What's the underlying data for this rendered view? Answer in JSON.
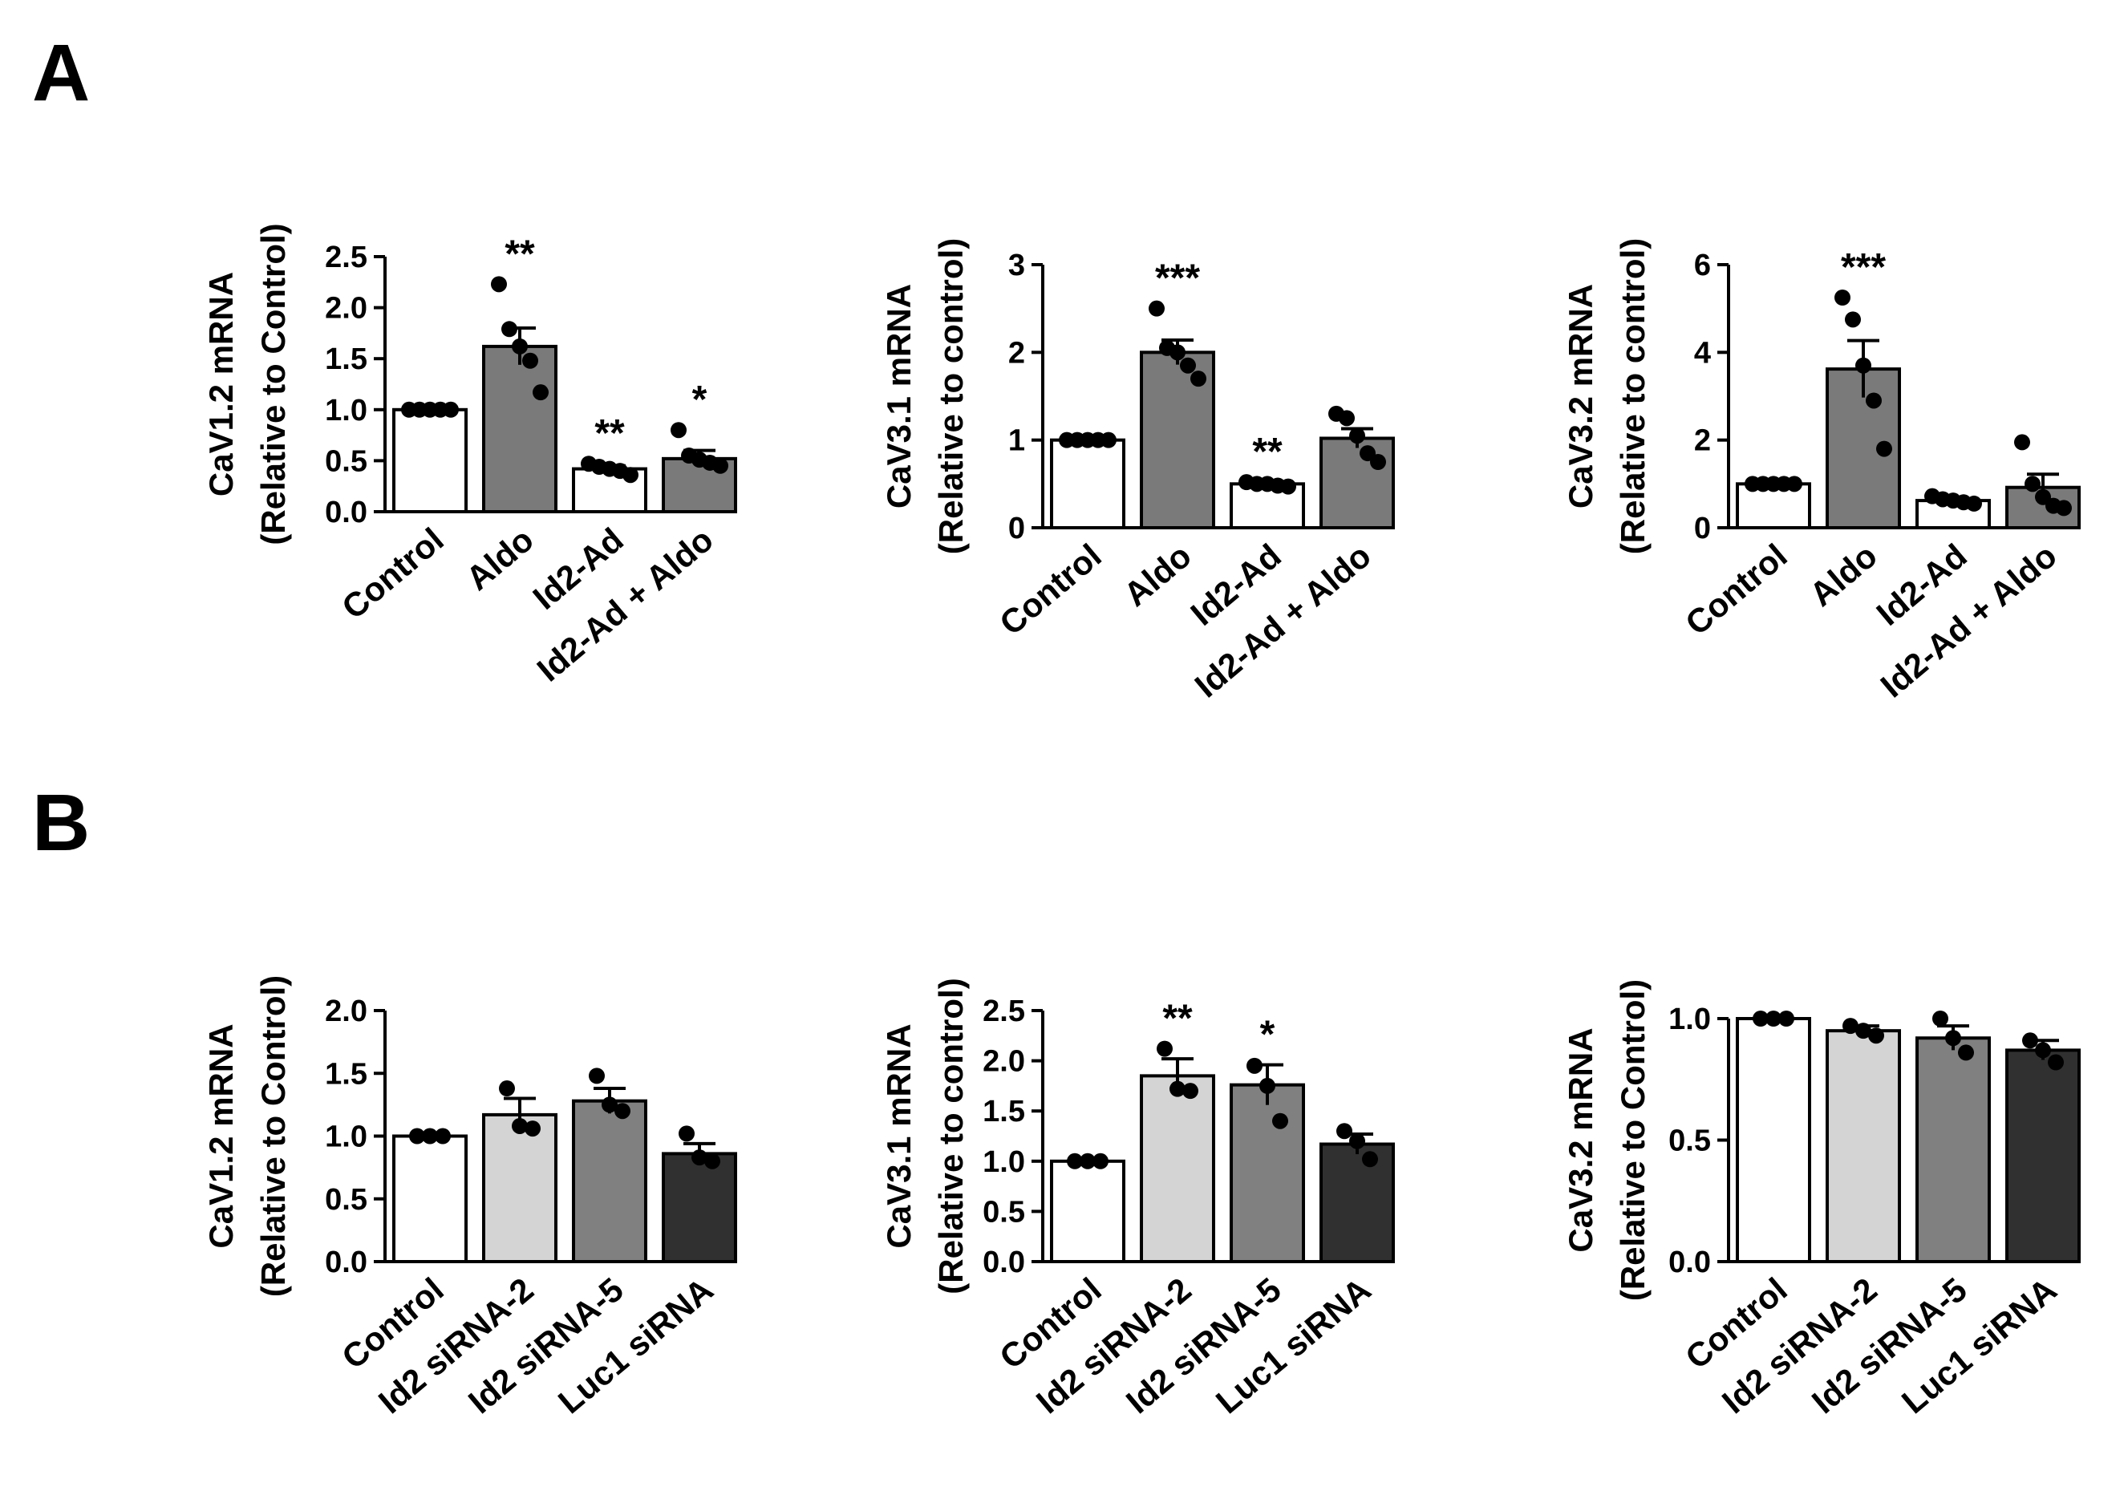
{
  "panels": {
    "A": "A",
    "B": "B"
  },
  "colors": {
    "Control": "#ffffff",
    "Aldo": "#7a7a7a",
    "Id2-Ad": "#ffffff",
    "Id2-Ad + Aldo": "#7a7a7a",
    "Id2 siRNA-2": "#d4d4d4",
    "Id2 siRNA-5": "#808080",
    "Luc1 siRNA": "#303030"
  },
  "chart_data": [
    {
      "id": "A1",
      "panel": "A",
      "type": "bar",
      "ylabel": [
        "CaV1.2 mRNA",
        "(Relative to Control)"
      ],
      "ylim": [
        0,
        2.5
      ],
      "yticks": [
        "0.0",
        "0.5",
        "1.0",
        "1.5",
        "2.0",
        "2.5"
      ],
      "categories": [
        "Control",
        "Aldo",
        "Id2-Ad",
        "Id2-Ad + Aldo"
      ],
      "values": [
        1.0,
        1.62,
        0.42,
        0.52
      ],
      "errors": [
        0.0,
        0.18,
        0.03,
        0.08
      ],
      "points": [
        [
          1.0,
          1.0,
          1.0,
          1.0,
          1.0
        ],
        [
          2.23,
          1.79,
          1.62,
          1.48,
          1.17
        ],
        [
          0.47,
          0.44,
          0.42,
          0.4,
          0.36
        ],
        [
          0.8,
          0.55,
          0.51,
          0.48,
          0.45
        ]
      ],
      "significance": [
        "",
        "**",
        "**",
        "*"
      ]
    },
    {
      "id": "A2",
      "panel": "A",
      "type": "bar",
      "ylabel": [
        "CaV3.1 mRNA",
        "(Relative to control)"
      ],
      "ylim": [
        0,
        3
      ],
      "yticks": [
        "0",
        "1",
        "2",
        "3"
      ],
      "categories": [
        "Control",
        "Aldo",
        "Id2-Ad",
        "Id2-Ad + Aldo"
      ],
      "values": [
        1.0,
        2.0,
        0.5,
        1.02
      ],
      "errors": [
        0.0,
        0.14,
        0.02,
        0.11
      ],
      "points": [
        [
          1.0,
          1.0,
          1.0,
          1.0,
          1.0
        ],
        [
          2.5,
          2.05,
          2.0,
          1.85,
          1.7
        ],
        [
          0.52,
          0.5,
          0.5,
          0.48,
          0.47
        ],
        [
          1.3,
          1.25,
          1.05,
          0.85,
          0.75
        ]
      ],
      "significance": [
        "",
        "***",
        "**",
        ""
      ]
    },
    {
      "id": "A3",
      "panel": "A",
      "type": "bar",
      "ylabel": [
        "CaV3.2 mRNA",
        "(Relative to control)"
      ],
      "ylim": [
        0,
        6
      ],
      "yticks": [
        "0",
        "2",
        "4",
        "6"
      ],
      "categories": [
        "Control",
        "Aldo",
        "Id2-Ad",
        "Id2-Ad + Aldo"
      ],
      "values": [
        1.0,
        3.62,
        0.62,
        0.92
      ],
      "errors": [
        0.0,
        0.65,
        0.06,
        0.3
      ],
      "points": [
        [
          1.0,
          1.0,
          1.0,
          1.0,
          1.0
        ],
        [
          5.25,
          4.75,
          3.7,
          2.9,
          1.8
        ],
        [
          0.72,
          0.65,
          0.62,
          0.58,
          0.55
        ],
        [
          1.95,
          1.0,
          0.7,
          0.5,
          0.45
        ]
      ],
      "significance": [
        "",
        "***",
        "",
        ""
      ]
    },
    {
      "id": "B1",
      "panel": "B",
      "type": "bar",
      "ylabel": [
        "CaV1.2 mRNA",
        "(Relative to Control)"
      ],
      "ylim": [
        0,
        2.0
      ],
      "yticks": [
        "0.0",
        "0.5",
        "1.0",
        "1.5",
        "2.0"
      ],
      "categories": [
        "Control",
        "Id2 siRNA-2",
        "Id2 siRNA-5",
        "Luc1 siRNA"
      ],
      "values": [
        1.0,
        1.17,
        1.28,
        0.86
      ],
      "errors": [
        0.0,
        0.13,
        0.1,
        0.08
      ],
      "points": [
        [
          1.0,
          1.0,
          1.0
        ],
        [
          1.38,
          1.08,
          1.06
        ],
        [
          1.48,
          1.25,
          1.2
        ],
        [
          1.02,
          0.83,
          0.8
        ]
      ],
      "significance": [
        "",
        "",
        "",
        ""
      ]
    },
    {
      "id": "B2",
      "panel": "B",
      "type": "bar",
      "ylabel": [
        "CaV3.1 mRNA",
        "(Relative to control)"
      ],
      "ylim": [
        0,
        2.5
      ],
      "yticks": [
        "0.0",
        "0.5",
        "1.0",
        "1.5",
        "2.0",
        "2.5"
      ],
      "categories": [
        "Control",
        "Id2 siRNA-2",
        "Id2 siRNA-5",
        "Luc1 siRNA"
      ],
      "values": [
        1.0,
        1.85,
        1.76,
        1.17
      ],
      "errors": [
        0.0,
        0.17,
        0.2,
        0.1
      ],
      "points": [
        [
          1.0,
          1.0,
          1.0
        ],
        [
          2.12,
          1.72,
          1.7
        ],
        [
          1.95,
          1.75,
          1.4
        ],
        [
          1.3,
          1.2,
          1.02
        ]
      ],
      "significance": [
        "",
        "**",
        "*",
        ""
      ]
    },
    {
      "id": "B3",
      "panel": "B",
      "type": "bar",
      "ylabel": [
        "CaV3.2 mRNA",
        "(Relative to Control)"
      ],
      "ylim": [
        0,
        1.0
      ],
      "yticks": [
        "0.0",
        "0.5",
        "1.0"
      ],
      "categories": [
        "Control",
        "Id2 siRNA-2",
        "Id2 siRNA-5",
        "Luc1 siRNA"
      ],
      "values": [
        1.0,
        0.95,
        0.92,
        0.87
      ],
      "errors": [
        0.0,
        0.02,
        0.05,
        0.04
      ],
      "points": [
        [
          1.0,
          1.0,
          1.0
        ],
        [
          0.97,
          0.95,
          0.93
        ],
        [
          1.0,
          0.92,
          0.86
        ],
        [
          0.91,
          0.87,
          0.82
        ]
      ],
      "significance": [
        "",
        "",
        "",
        ""
      ]
    }
  ]
}
